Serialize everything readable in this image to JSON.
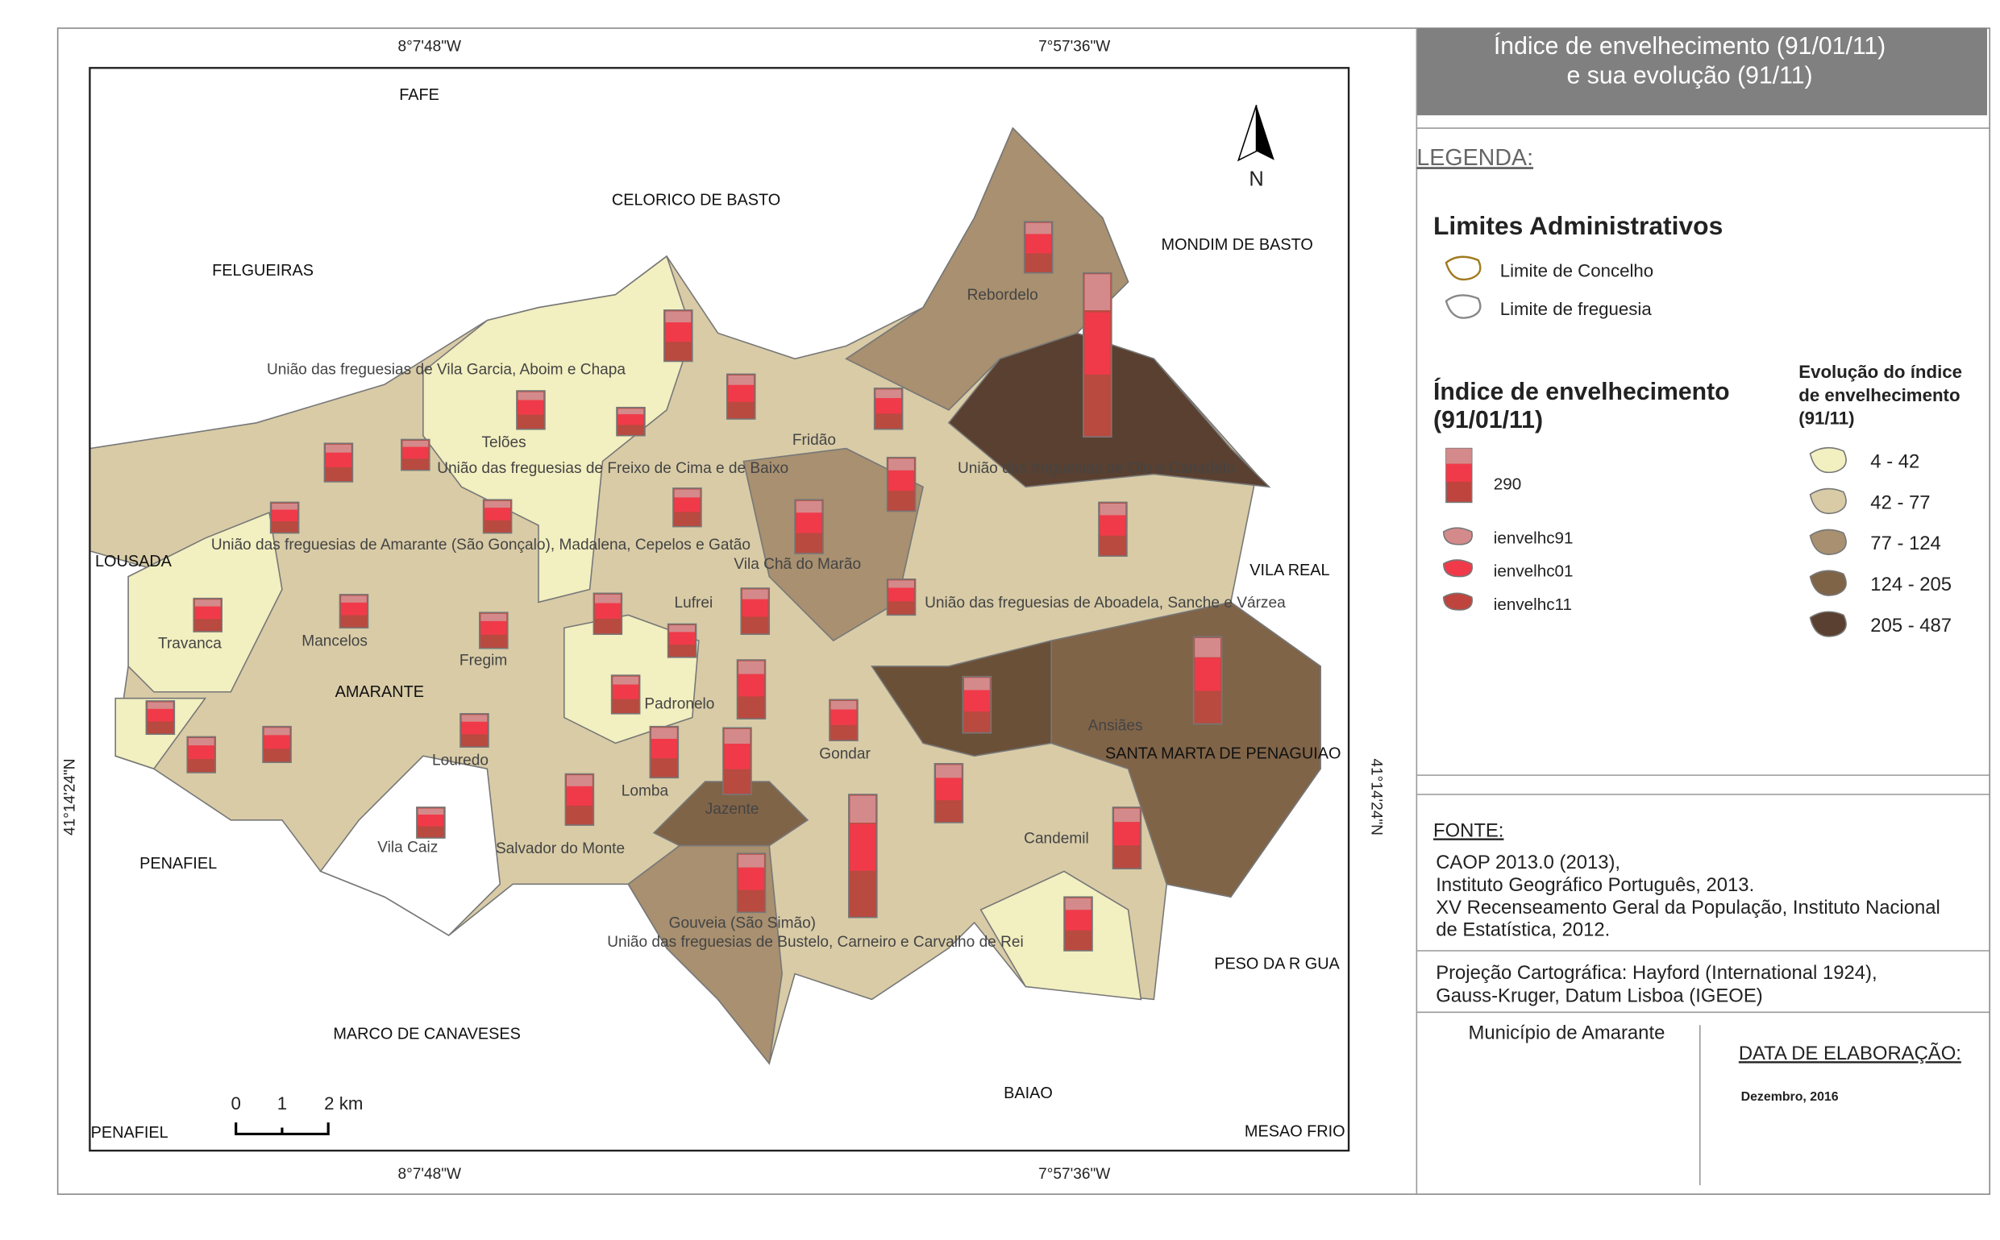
{
  "title": [
    "Índice de envelhecimento (91/01/11)",
    "e sua evolução (91/11)"
  ],
  "legend_heading": "LEGENDA:",
  "admin": {
    "title": "Limites Administrativos",
    "items": [
      "Limite de Concelho",
      "Limite de freguesia"
    ]
  },
  "index": {
    "title": [
      "Índice de envelhecimento",
      "(91/01/11)"
    ],
    "size_label": "290",
    "items": [
      "ienvelhc91",
      "ienvelhc01",
      "ienvelhc11"
    ]
  },
  "evolution": {
    "title": [
      "Evolução do índice",
      "de envelhecimento",
      "(91/11)"
    ],
    "classes": [
      "4 - 42",
      "42 - 77",
      "77 - 124",
      "124 - 205",
      "205 - 487"
    ]
  },
  "source": {
    "heading": "FONTE:",
    "lines": [
      "CAOP 2013.0 (2013),",
      "Instituto Geográfico Português, 2013.",
      "XV Recenseamento Geral da População, Instituto Nacional",
      "de Estatística, 2012."
    ]
  },
  "projection": [
    "Projeção Cartográfica: Hayford (International 1924),",
    "Gauss-Kruger, Datum Lisboa (IGEOE)"
  ],
  "municipality": "Município de Amarante",
  "date": {
    "heading": "DATA DE ELABORAÇÃO:",
    "value": "Dezembro, 2016"
  },
  "map": {
    "coords_top": [
      "8°7'48\"W",
      "7°57'36\"W"
    ],
    "coords_bottom": [
      "8°7'48\"W",
      "7°57'36\"W"
    ],
    "coord_left": "41°14'24\"N",
    "coord_right": "41°14'24\"N",
    "north": "N",
    "scale": [
      "0",
      "1",
      "2 km"
    ],
    "councils": [
      "FAFE",
      "CELORICO DE BASTO",
      "MONDIM DE BASTO",
      "FELGUEIRAS",
      "LOUSADA",
      "VILA REAL",
      "AMARANTE",
      "SANTA MARTA DE PENAGUIAO",
      "PENAFIEL",
      "PESO DA R  GUA",
      "MARCO DE CANAVESES",
      "BAIAO",
      "PENAFIEL",
      "MESAO FRIO"
    ],
    "parishes": [
      "Rebordelo",
      "União das freguesias de Vila Garcia, Aboim e Chapa",
      "Telões",
      "União das freguesias de Freixo de Cima e de Baixo",
      "Fridão",
      "União das freguesias de Olo e Canadelo",
      "União das freguesias de Amarante (São Gonçalo), Madalena, Cepelos e Gatão",
      "Vila Chã do Marão",
      "União das freguesias de Aboadela, Sanche e Várzea",
      "Lufrei",
      "Travanca",
      "Mancelos",
      "Fregim",
      "Padronelo",
      "Ansiães",
      "Louredo",
      "Lomba",
      "Gondar",
      "Jazente",
      "Vila Caiz",
      "Salvador do Monte",
      "Candemil",
      "Gouveia (São Simão)",
      "União das freguesias de Bustelo, Carneiro e Carvalho de Rei"
    ]
  }
}
